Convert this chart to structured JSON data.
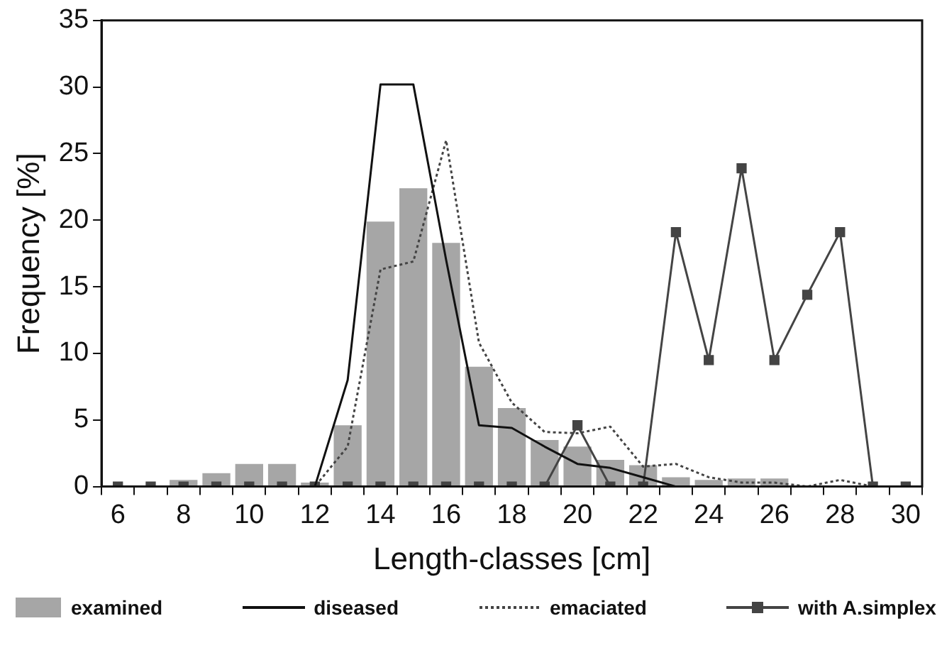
{
  "chart_data": {
    "type": "bar",
    "xlabel": "Length-classes [cm]",
    "ylabel": "Frequency [%]",
    "categories": [
      "6",
      null,
      "8",
      null,
      "10",
      null,
      "12",
      null,
      "14",
      null,
      "16",
      null,
      "18",
      null,
      "20",
      null,
      "22",
      null,
      "24",
      null,
      "26",
      null,
      "28",
      null,
      "30"
    ],
    "series": [
      {
        "name": "examined",
        "color": "#a6a6a6",
        "values": [
          null,
          null,
          0.5,
          1,
          1.7,
          1.7,
          0.3,
          4.6,
          19.9,
          22.4,
          18.3,
          9,
          5.9,
          3.5,
          3,
          2,
          1.6,
          0.7,
          0.5,
          0.6,
          0.6,
          null,
          null,
          null,
          null
        ]
      },
      {
        "name": "diseased",
        "type": "line",
        "color": "#111111",
        "line_style": "solid",
        "marker": "none",
        "values": [
          0,
          0,
          0,
          0,
          0,
          0,
          0,
          8,
          30.2,
          30.2,
          17,
          4.6,
          4.4,
          3,
          1.7,
          1.4,
          0.7,
          0,
          0,
          0,
          0,
          0,
          0,
          0,
          0
        ]
      },
      {
        "name": "emaciated",
        "type": "line",
        "color": "#444444",
        "line_style": "dotted",
        "marker": "none",
        "values": [
          0,
          0,
          0,
          0,
          0,
          0,
          0,
          3,
          16.3,
          16.9,
          26,
          10.8,
          6.3,
          4.1,
          4,
          4.5,
          1.5,
          1.7,
          0.7,
          0.3,
          0.3,
          0,
          0.5,
          0,
          0
        ]
      },
      {
        "name": "with A.simplex",
        "type": "line",
        "color": "#444444",
        "line_style": "solid",
        "marker": "square",
        "values": [
          0,
          0,
          0,
          0,
          0,
          0,
          0,
          0,
          0,
          0,
          0,
          0,
          0,
          0,
          4.6,
          0,
          0,
          19.1,
          9.5,
          23.9,
          9.5,
          14.4,
          19.1,
          0,
          0
        ]
      }
    ],
    "ylim": [
      0,
      35
    ],
    "yticks": [
      0,
      5,
      10,
      15,
      20,
      25,
      30,
      35
    ],
    "grid": false,
    "legend": "bottom"
  }
}
